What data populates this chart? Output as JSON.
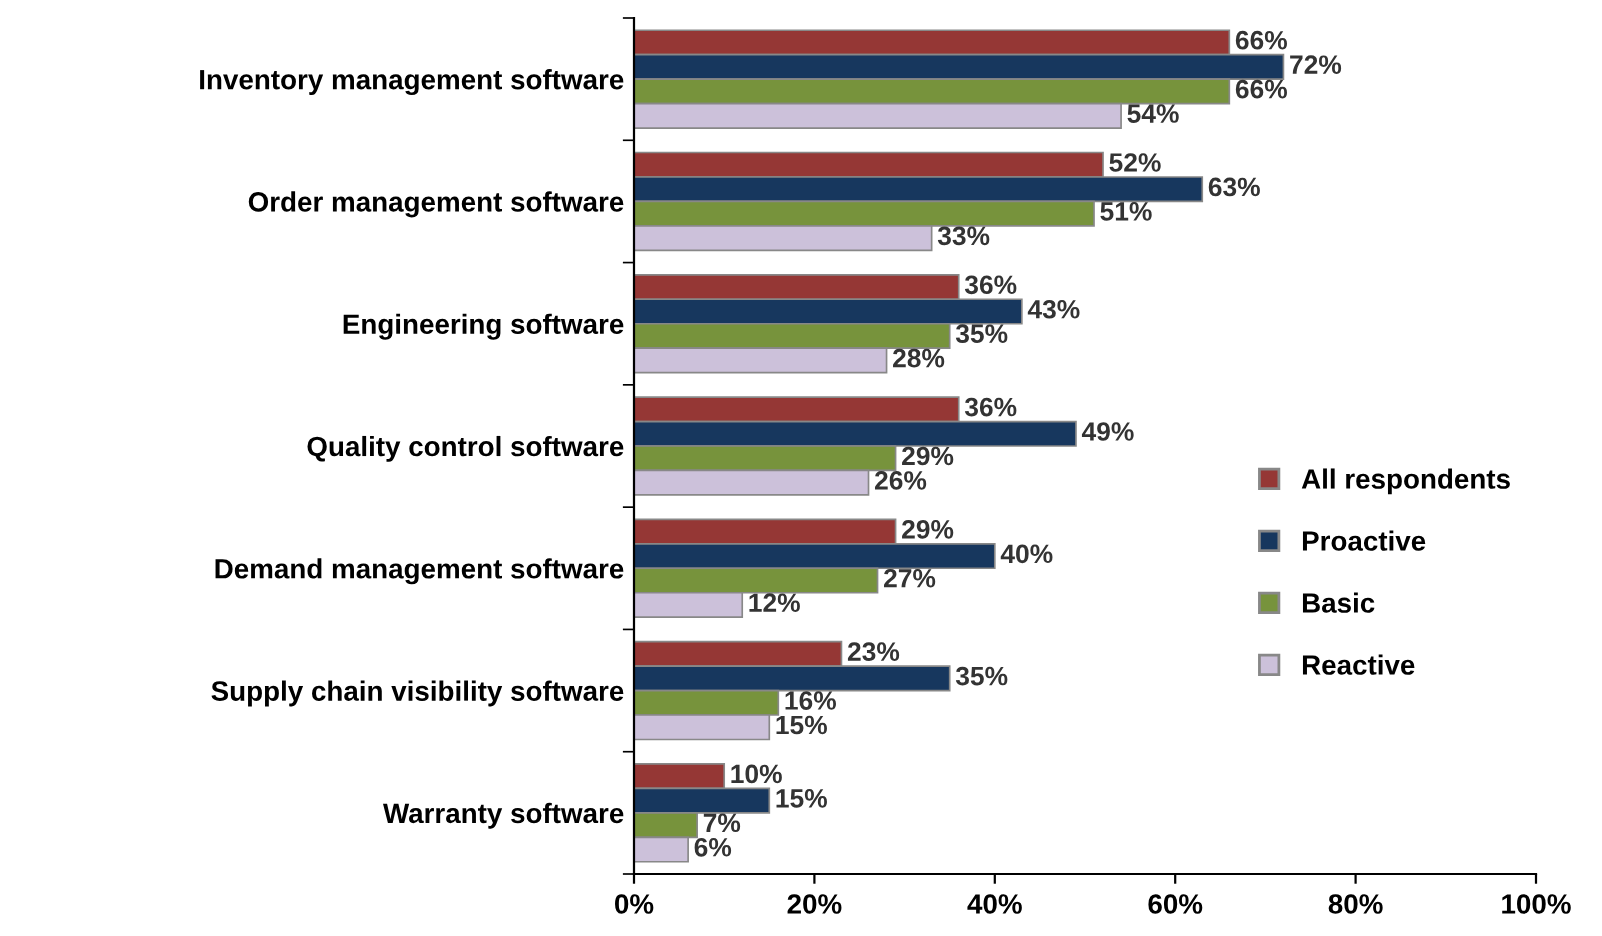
{
  "chart_data": {
    "type": "bar",
    "orientation": "horizontal",
    "categories": [
      "Inventory management software",
      "Order management software",
      "Engineering software",
      "Quality control software",
      "Demand management software",
      "Supply chain visibility software",
      "Warranty software"
    ],
    "series": [
      {
        "name": "All respondents",
        "color": "#953735",
        "values": [
          66,
          52,
          36,
          36,
          29,
          23,
          10
        ],
        "value_labels": [
          "66%",
          "52%",
          "36%",
          "36%",
          "29%",
          "23%",
          "10%"
        ]
      },
      {
        "name": "Proactive",
        "color": "#17375e",
        "values": [
          72,
          63,
          43,
          49,
          40,
          35,
          15
        ],
        "value_labels": [
          "72%",
          "63%",
          "43%",
          "49%",
          "40%",
          "35%",
          "15%"
        ]
      },
      {
        "name": "Basic",
        "color": "#77933c",
        "values": [
          66,
          51,
          35,
          29,
          27,
          16,
          7
        ],
        "value_labels": [
          "66%",
          "51%",
          "35%",
          "29%",
          "27%",
          "16%",
          "7%"
        ]
      },
      {
        "name": "Reactive",
        "color": "#ccc1da",
        "values": [
          54,
          33,
          28,
          26,
          12,
          15,
          6
        ],
        "value_labels": [
          "54%",
          "33%",
          "28%",
          "26%",
          "12%",
          "15%",
          "6%"
        ]
      }
    ],
    "xlim": [
      0,
      100
    ],
    "xticks": [
      {
        "value": 0,
        "label": "0%"
      },
      {
        "value": 20,
        "label": "20%"
      },
      {
        "value": 40,
        "label": "40%"
      },
      {
        "value": 60,
        "label": "60%"
      },
      {
        "value": 80,
        "label": "80%"
      },
      {
        "value": 100,
        "label": "100%"
      }
    ],
    "grid": false,
    "legend": "right"
  }
}
